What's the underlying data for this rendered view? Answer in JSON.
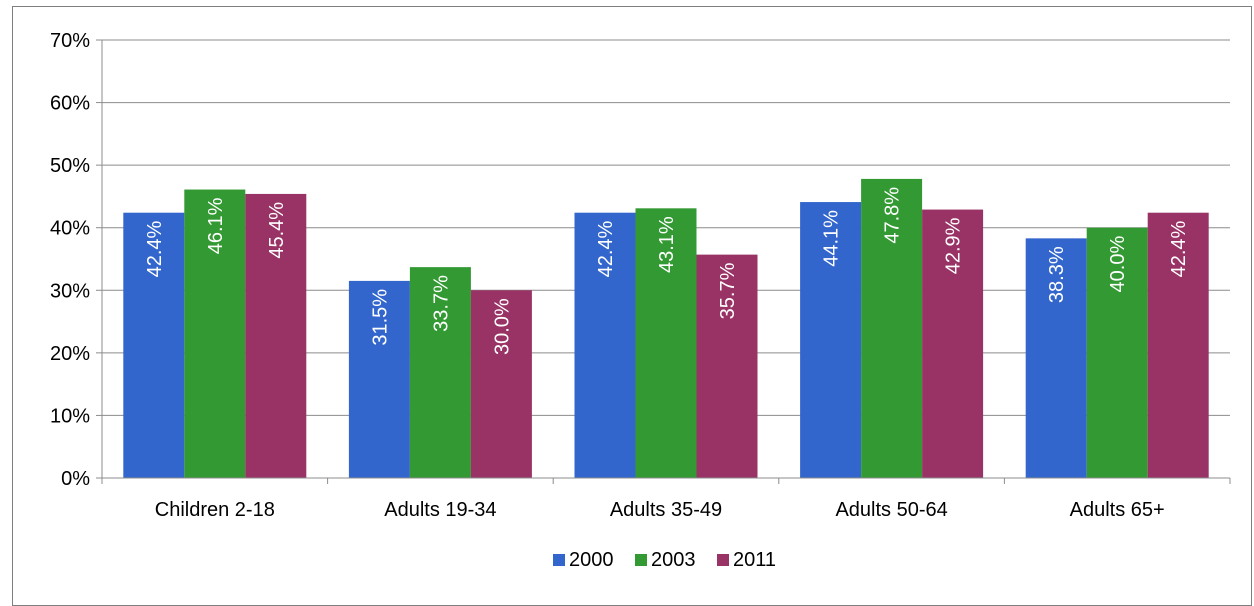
{
  "chart_data": {
    "type": "bar",
    "categories": [
      "Children 2-18",
      "Adults 19-34",
      "Adults 35-49",
      "Adults 50-64",
      "Adults 65+"
    ],
    "series": [
      {
        "name": "2000",
        "color": "#3366cc",
        "values": [
          42.4,
          31.5,
          42.4,
          44.1,
          38.3
        ],
        "labels": [
          "42.4%",
          "31.5%",
          "42.4%",
          "44.1%",
          "38.3%"
        ]
      },
      {
        "name": "2003",
        "color": "#339933",
        "values": [
          46.1,
          33.7,
          43.1,
          47.8,
          40.0
        ],
        "labels": [
          "46.1%",
          "33.7%",
          "43.1%",
          "47.8%",
          "40.0%"
        ]
      },
      {
        "name": "2011",
        "color": "#993366",
        "values": [
          45.4,
          30.0,
          35.7,
          42.9,
          42.4
        ],
        "labels": [
          "45.4%",
          "30.0%",
          "35.7%",
          "42.9%",
          "42.4%"
        ]
      }
    ],
    "ylim": [
      0,
      70
    ],
    "yticks": [
      0,
      10,
      20,
      30,
      40,
      50,
      60,
      70
    ],
    "ytick_labels": [
      "0%",
      "10%",
      "20%",
      "30%",
      "40%",
      "50%",
      "60%",
      "70%"
    ],
    "grid": true,
    "legend_position": "bottom",
    "data_label_color": "#ffffff",
    "gridline_color": "#8c8c8c",
    "axis_text_color": "#000000",
    "title": "",
    "xlabel": "",
    "ylabel": ""
  }
}
